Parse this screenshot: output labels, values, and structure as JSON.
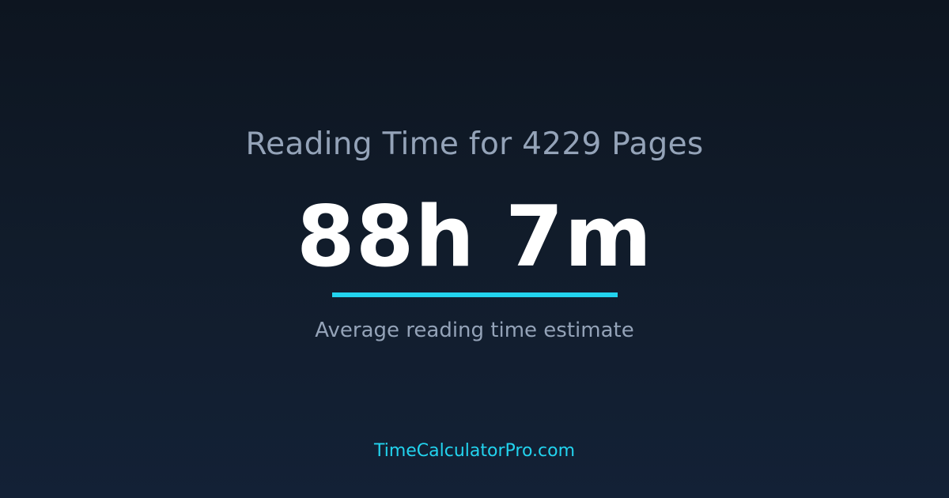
{
  "title": "Reading Time for 4229 Pages",
  "result": "88h 7m",
  "subtitle": "Average reading time estimate",
  "site": "TimeCalculatorPro.com",
  "colors": {
    "accent": "#22d3ee",
    "muted_text": "#94a3b8",
    "background": "#111c2b"
  }
}
